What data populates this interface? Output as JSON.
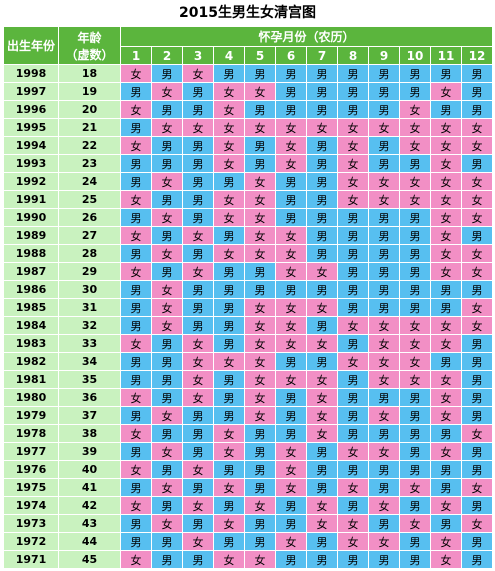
{
  "title": "2015生男生女清宫图",
  "headers": {
    "birth_year": "出生年份",
    "age_line1": "年龄",
    "age_line2": "（虚数）",
    "conception_month": "怀孕月份（农历）"
  },
  "labels": {
    "male": "男",
    "female": "女"
  },
  "colors": {
    "header": "#5bb53d",
    "year_cell": "#c9f2bf",
    "male": "#57bff0",
    "female": "#f28fc5"
  },
  "months": [
    "1",
    "2",
    "3",
    "4",
    "5",
    "6",
    "7",
    "8",
    "9",
    "10",
    "11",
    "12"
  ],
  "rows": [
    {
      "year": "1998",
      "age": "18",
      "cells": "女男女男男男男男男男男男"
    },
    {
      "year": "1997",
      "age": "19",
      "cells": "男女男女女男男男男男女男"
    },
    {
      "year": "1996",
      "age": "20",
      "cells": "女男男女男男男男男女男男"
    },
    {
      "year": "1995",
      "age": "21",
      "cells": "男女女女女女女女女女女女"
    },
    {
      "year": "1994",
      "age": "22",
      "cells": "女男男女男女男女男女女女"
    },
    {
      "year": "1993",
      "age": "23",
      "cells": "男男男女男女男女男男女男"
    },
    {
      "year": "1992",
      "age": "24",
      "cells": "男女男男女男男女女女女女"
    },
    {
      "year": "1991",
      "age": "25",
      "cells": "女男男女女男男女女女女女"
    },
    {
      "year": "1990",
      "age": "26",
      "cells": "男女男女女男男男男男女女"
    },
    {
      "year": "1989",
      "age": "27",
      "cells": "女男女男女女男男男男女男"
    },
    {
      "year": "1988",
      "age": "28",
      "cells": "男女男女女女男男男男女女"
    },
    {
      "year": "1987",
      "age": "29",
      "cells": "女男女男男女女男男男女女"
    },
    {
      "year": "1986",
      "age": "30",
      "cells": "男女男男男男男男男男男男"
    },
    {
      "year": "1985",
      "age": "31",
      "cells": "男女男男女女女男男男男女"
    },
    {
      "year": "1984",
      "age": "32",
      "cells": "男女男男女女男女女女女女"
    },
    {
      "year": "1983",
      "age": "33",
      "cells": "女男女男女女女男女女女男"
    },
    {
      "year": "1982",
      "age": "34",
      "cells": "男男女女女男男女女女男男"
    },
    {
      "year": "1981",
      "age": "35",
      "cells": "男男女男女女女男女女女男"
    },
    {
      "year": "1980",
      "age": "36",
      "cells": "女男女男女男女男男男女男"
    },
    {
      "year": "1979",
      "age": "37",
      "cells": "男女男男女男女男女男女男"
    },
    {
      "year": "1978",
      "age": "38",
      "cells": "女男男女男男女男男男男女"
    },
    {
      "year": "1977",
      "age": "39",
      "cells": "男女男女男女男女女男女男"
    },
    {
      "year": "1976",
      "age": "40",
      "cells": "女男女男男女男男男男男男"
    },
    {
      "year": "1975",
      "age": "41",
      "cells": "男女男女男女男女男女男女"
    },
    {
      "year": "1974",
      "age": "42",
      "cells": "女男女男女男女男女男女男"
    },
    {
      "year": "1973",
      "age": "43",
      "cells": "男女男女男男女女男女男女"
    },
    {
      "year": "1972",
      "age": "44",
      "cells": "男男女男男女男女女男女男"
    },
    {
      "year": "1971",
      "age": "45",
      "cells": "女男男女女男男男男男女男"
    }
  ]
}
